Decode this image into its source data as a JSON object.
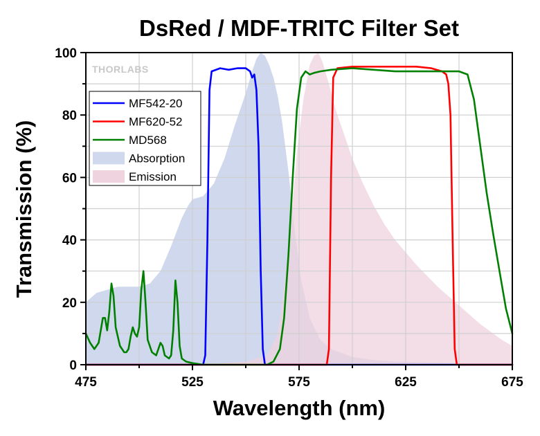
{
  "chart_data": {
    "type": "line",
    "title": "DsRed / MDF-TRITC Filter Set",
    "xlabel": "Wavelength (nm)",
    "ylabel": "Transmission (%)",
    "xlim": [
      475,
      675
    ],
    "ylim": [
      0,
      100
    ],
    "xticks": [
      475,
      525,
      575,
      625,
      675
    ],
    "yticks": [
      0,
      20,
      40,
      60,
      80,
      100
    ],
    "grid": true,
    "legend_position": "upper-left",
    "logo": "THORLABS",
    "series": [
      {
        "name": "MF542-20",
        "kind": "line",
        "color": "#0000ff",
        "points": [
          [
            475,
            0
          ],
          [
            530,
            0
          ],
          [
            531,
            3
          ],
          [
            532,
            40
          ],
          [
            533,
            88
          ],
          [
            534,
            94
          ],
          [
            538,
            95
          ],
          [
            542,
            94.5
          ],
          [
            546,
            95
          ],
          [
            550,
            95
          ],
          [
            552,
            94
          ],
          [
            553,
            92
          ],
          [
            554,
            93
          ],
          [
            555,
            88
          ],
          [
            556,
            70
          ],
          [
            557,
            30
          ],
          [
            558,
            5
          ],
          [
            559,
            0
          ],
          [
            675,
            0
          ]
        ]
      },
      {
        "name": "MF620-52",
        "kind": "line",
        "color": "#ff0000",
        "points": [
          [
            475,
            0
          ],
          [
            588,
            0
          ],
          [
            589,
            5
          ],
          [
            590,
            60
          ],
          [
            591,
            92
          ],
          [
            593,
            95
          ],
          [
            600,
            95.5
          ],
          [
            610,
            95.5
          ],
          [
            620,
            95.5
          ],
          [
            630,
            95.5
          ],
          [
            637,
            95
          ],
          [
            642,
            94
          ],
          [
            644,
            93
          ],
          [
            645,
            90
          ],
          [
            646,
            80
          ],
          [
            647,
            40
          ],
          [
            648,
            5
          ],
          [
            649,
            0
          ],
          [
            675,
            0
          ]
        ]
      },
      {
        "name": "MD568",
        "kind": "line",
        "color": "#008000",
        "points": [
          [
            475,
            10
          ],
          [
            477,
            7
          ],
          [
            479,
            5
          ],
          [
            481,
            7
          ],
          [
            483,
            15
          ],
          [
            484,
            15
          ],
          [
            485,
            11
          ],
          [
            486,
            17
          ],
          [
            487,
            26
          ],
          [
            488,
            22
          ],
          [
            489,
            12
          ],
          [
            491,
            6
          ],
          [
            493,
            4
          ],
          [
            494,
            4
          ],
          [
            495,
            5
          ],
          [
            496,
            9
          ],
          [
            497,
            12
          ],
          [
            498,
            10
          ],
          [
            499,
            9
          ],
          [
            500,
            12
          ],
          [
            501,
            24
          ],
          [
            502,
            30
          ],
          [
            503,
            20
          ],
          [
            504,
            8
          ],
          [
            506,
            4
          ],
          [
            508,
            3
          ],
          [
            509,
            5
          ],
          [
            510,
            7
          ],
          [
            511,
            6
          ],
          [
            512,
            3
          ],
          [
            514,
            2
          ],
          [
            515,
            3
          ],
          [
            516,
            11
          ],
          [
            517,
            27
          ],
          [
            518,
            20
          ],
          [
            519,
            6
          ],
          [
            520,
            2
          ],
          [
            522,
            1
          ],
          [
            525,
            0.5
          ],
          [
            530,
            0
          ],
          [
            560,
            0
          ],
          [
            563,
            1
          ],
          [
            566,
            5
          ],
          [
            568,
            15
          ],
          [
            570,
            35
          ],
          [
            572,
            60
          ],
          [
            574,
            82
          ],
          [
            576,
            92
          ],
          [
            578,
            94
          ],
          [
            580,
            93
          ],
          [
            582,
            93.5
          ],
          [
            585,
            94
          ],
          [
            590,
            94.5
          ],
          [
            600,
            95
          ],
          [
            610,
            94.5
          ],
          [
            620,
            94
          ],
          [
            630,
            94
          ],
          [
            640,
            94
          ],
          [
            650,
            94
          ],
          [
            654,
            93
          ],
          [
            657,
            85
          ],
          [
            660,
            70
          ],
          [
            663,
            55
          ],
          [
            666,
            42
          ],
          [
            669,
            30
          ],
          [
            672,
            18
          ],
          [
            675,
            10
          ]
        ]
      },
      {
        "name": "Absorption",
        "kind": "area",
        "color": "#cfd8ec",
        "points": [
          [
            475,
            20
          ],
          [
            480,
            23
          ],
          [
            490,
            25
          ],
          [
            500,
            25
          ],
          [
            505,
            26
          ],
          [
            510,
            30
          ],
          [
            515,
            38
          ],
          [
            520,
            47
          ],
          [
            523,
            51
          ],
          [
            525,
            53
          ],
          [
            530,
            54
          ],
          [
            535,
            58
          ],
          [
            540,
            66
          ],
          [
            545,
            77
          ],
          [
            550,
            87
          ],
          [
            553,
            94
          ],
          [
            555,
            98
          ],
          [
            557,
            100
          ],
          [
            559,
            99
          ],
          [
            561,
            96
          ],
          [
            563,
            92
          ],
          [
            565,
            86
          ],
          [
            567,
            78
          ],
          [
            570,
            62
          ],
          [
            573,
            43
          ],
          [
            576,
            27
          ],
          [
            580,
            15
          ],
          [
            585,
            8
          ],
          [
            590,
            5
          ],
          [
            600,
            2.5
          ],
          [
            610,
            1.5
          ],
          [
            620,
            1
          ],
          [
            650,
            0.5
          ],
          [
            675,
            0.5
          ]
        ]
      },
      {
        "name": "Emission",
        "kind": "area",
        "color": "#efd3df",
        "points": [
          [
            475,
            0
          ],
          [
            530,
            0
          ],
          [
            540,
            0.5
          ],
          [
            550,
            1
          ],
          [
            560,
            3
          ],
          [
            565,
            10
          ],
          [
            568,
            25
          ],
          [
            571,
            45
          ],
          [
            574,
            68
          ],
          [
            577,
            85
          ],
          [
            580,
            96
          ],
          [
            582,
            99
          ],
          [
            584,
            100
          ],
          [
            586,
            97
          ],
          [
            589,
            90
          ],
          [
            592,
            82
          ],
          [
            596,
            74
          ],
          [
            600,
            66
          ],
          [
            605,
            58
          ],
          [
            610,
            51
          ],
          [
            615,
            45
          ],
          [
            620,
            40
          ],
          [
            625,
            36
          ],
          [
            630,
            32
          ],
          [
            640,
            25
          ],
          [
            650,
            19
          ],
          [
            660,
            13
          ],
          [
            670,
            8
          ],
          [
            675,
            6
          ]
        ]
      }
    ]
  }
}
